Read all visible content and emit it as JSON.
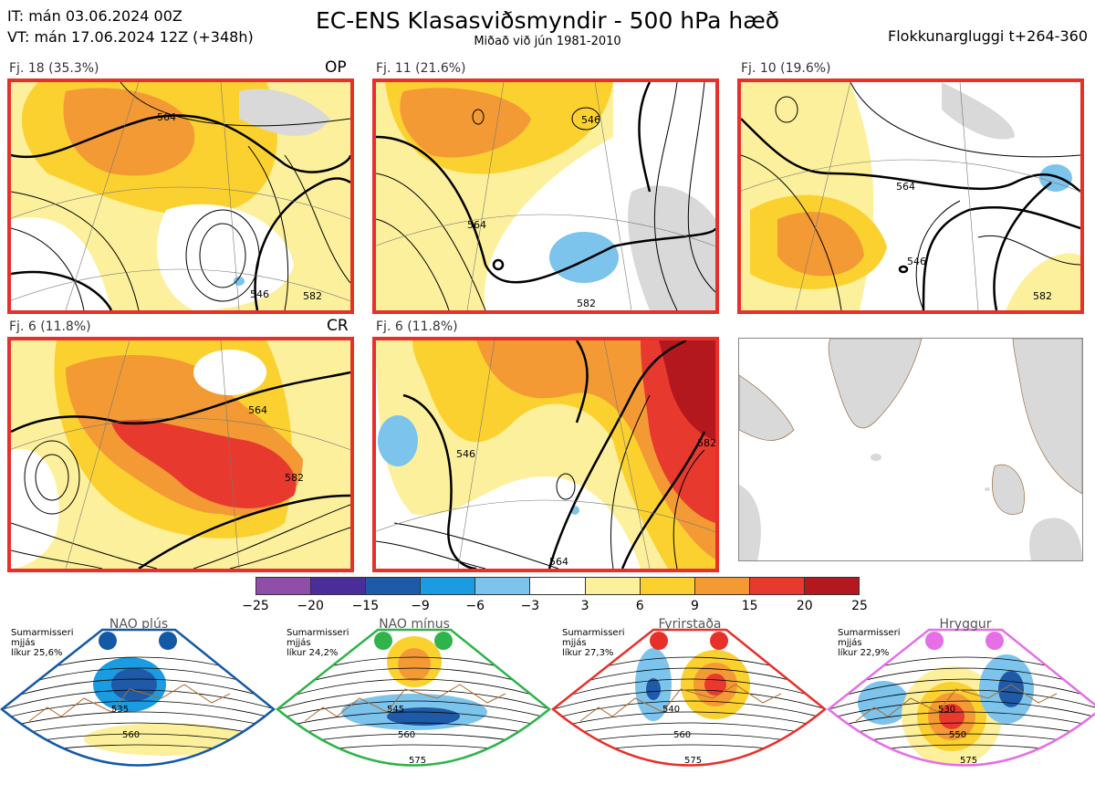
{
  "header": {
    "it": "IT: mán 03.06.2024 00Z",
    "vt": "VT: mán 17.06.2024 12Z  (+348h)",
    "title": "EC-ENS Klasasviðsmyndir - 500 hPa hæð",
    "subtitle": "Miðað við jún 1981-2010",
    "window": "Flokkunargluggi t+264-360"
  },
  "panels": [
    {
      "label": "Fj. 18 (35.3%)",
      "tag": "OP"
    },
    {
      "label": "Fj. 11 (21.6%)",
      "tag": ""
    },
    {
      "label": "Fj. 10 (19.6%)",
      "tag": ""
    },
    {
      "label": "Fj. 6 (11.8%)",
      "tag": "CR"
    },
    {
      "label": "Fj. 6 (11.8%)",
      "tag": ""
    }
  ],
  "contour_labels": [
    "546",
    "564",
    "582"
  ],
  "colorbar": {
    "ticks": [
      "−25",
      "−20",
      "−15",
      "−9",
      "−6",
      "−3",
      "3",
      "6",
      "9",
      "15",
      "20",
      "25"
    ],
    "colors": [
      "#8f4fa8",
      "#4b2d99",
      "#1f5aa8",
      "#1b9be0",
      "#7cc4ec",
      "#ffffff",
      "#fdf09c",
      "#fbd130",
      "#f39a35",
      "#e8392f",
      "#b3181f"
    ]
  },
  "regimes": [
    {
      "title": "NAO plús",
      "info": [
        "Sumarmisseri",
        "mjjás",
        "líkur 25,6%"
      ],
      "color": "#1459a6",
      "labels": [
        "535",
        "560"
      ]
    },
    {
      "title": "NAO mínus",
      "info": [
        "Sumarmisseri",
        "mjjás",
        "líkur 24,2%"
      ],
      "color": "#2fb34a",
      "labels": [
        "545",
        "560",
        "575"
      ]
    },
    {
      "title": "Fyrirstaða",
      "info": [
        "Sumarmisseri",
        "mjjás",
        "líkur 27,3%"
      ],
      "color": "#e8302a",
      "labels": [
        "540",
        "560",
        "575"
      ]
    },
    {
      "title": "Hryggur",
      "info": [
        "Sumarmisseri",
        "mjjás",
        "líkur 22,9%"
      ],
      "color": "#e66ee6",
      "labels": [
        "530",
        "550",
        "575"
      ]
    }
  ]
}
